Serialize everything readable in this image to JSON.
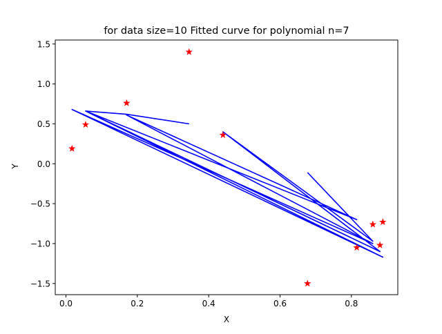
{
  "chart_data": {
    "type": "line",
    "title": "for data size=10 Fitted curve for polynomial n=7",
    "xlabel": "X",
    "ylabel": "Y",
    "xlim": [
      -0.03,
      0.93
    ],
    "ylim": [
      -1.64,
      1.55
    ],
    "x_ticks": [
      0.0,
      0.2,
      0.4,
      0.6,
      0.8
    ],
    "x_tick_labels": [
      "0.0",
      "0.2",
      "0.4",
      "0.6",
      "0.8"
    ],
    "y_ticks": [
      -1.5,
      -1.0,
      -0.5,
      0.0,
      0.5,
      1.0,
      1.5
    ],
    "y_tick_labels": [
      "−1.5",
      "−1.0",
      "−0.5",
      "0.0",
      "0.5",
      "1.0",
      "1.5"
    ],
    "grid": false,
    "series": [
      {
        "kind": "scatter",
        "marker": "star",
        "color": "#ff0000",
        "points": [
          [
            0.017,
            0.19
          ],
          [
            0.055,
            0.49
          ],
          [
            0.17,
            0.76
          ],
          [
            0.345,
            1.4
          ],
          [
            0.44,
            0.36
          ],
          [
            0.677,
            -1.5
          ],
          [
            0.815,
            -1.05
          ],
          [
            0.86,
            -0.76
          ],
          [
            0.88,
            -1.02
          ],
          [
            0.888,
            -0.73
          ]
        ]
      },
      {
        "kind": "line",
        "color": "#0000ff",
        "points": [
          [
            0.345,
            0.5
          ],
          [
            0.17,
            0.62
          ],
          [
            0.055,
            0.66
          ],
          [
            0.888,
            -1.17
          ],
          [
            0.017,
            0.68
          ],
          [
            0.86,
            -1.0
          ],
          [
            0.17,
            0.61
          ],
          [
            0.815,
            -0.7
          ],
          [
            0.055,
            0.66
          ],
          [
            0.88,
            -1.1
          ],
          [
            0.44,
            0.4
          ],
          [
            0.86,
            -0.97
          ],
          [
            0.677,
            -0.11
          ]
        ]
      }
    ]
  }
}
